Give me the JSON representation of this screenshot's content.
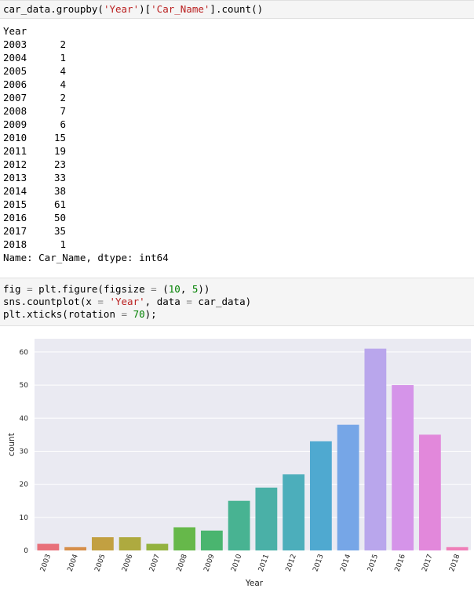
{
  "cell1": {
    "code": [
      [
        {
          "t": "car_data.groupby("
        },
        {
          "t": "'Year'",
          "c": "str"
        },
        {
          "t": ")["
        },
        {
          "t": "'Car_Name'",
          "c": "str"
        },
        {
          "t": "].count()"
        }
      ]
    ]
  },
  "output1": {
    "header": "Year",
    "rows": [
      {
        "year": "2003",
        "count": "2"
      },
      {
        "year": "2004",
        "count": "1"
      },
      {
        "year": "2005",
        "count": "4"
      },
      {
        "year": "2006",
        "count": "4"
      },
      {
        "year": "2007",
        "count": "2"
      },
      {
        "year": "2008",
        "count": "7"
      },
      {
        "year": "2009",
        "count": "6"
      },
      {
        "year": "2010",
        "count": "15"
      },
      {
        "year": "2011",
        "count": "19"
      },
      {
        "year": "2012",
        "count": "23"
      },
      {
        "year": "2013",
        "count": "33"
      },
      {
        "year": "2014",
        "count": "38"
      },
      {
        "year": "2015",
        "count": "61"
      },
      {
        "year": "2016",
        "count": "50"
      },
      {
        "year": "2017",
        "count": "35"
      },
      {
        "year": "2018",
        "count": "1"
      }
    ],
    "footer": "Name: Car_Name, dtype: int64"
  },
  "cell2": {
    "code": [
      [
        {
          "t": "fig "
        },
        {
          "t": "=",
          "c": "op"
        },
        {
          "t": " plt.figure(figsize "
        },
        {
          "t": "=",
          "c": "op"
        },
        {
          "t": " ("
        },
        {
          "t": "10",
          "c": "num"
        },
        {
          "t": ", "
        },
        {
          "t": "5",
          "c": "num"
        },
        {
          "t": "))"
        }
      ],
      [
        {
          "t": "sns.countplot(x "
        },
        {
          "t": "=",
          "c": "op"
        },
        {
          "t": " "
        },
        {
          "t": "'Year'",
          "c": "str"
        },
        {
          "t": ", data "
        },
        {
          "t": "=",
          "c": "op"
        },
        {
          "t": " car_data)"
        }
      ],
      [
        {
          "t": "plt.xticks(rotation "
        },
        {
          "t": "=",
          "c": "op"
        },
        {
          "t": " "
        },
        {
          "t": "70",
          "c": "num"
        },
        {
          "t": ");"
        }
      ]
    ]
  },
  "chart_data": {
    "type": "bar",
    "categories": [
      "2003",
      "2004",
      "2005",
      "2006",
      "2007",
      "2008",
      "2009",
      "2010",
      "2011",
      "2012",
      "2013",
      "2014",
      "2015",
      "2016",
      "2017",
      "2018"
    ],
    "values": [
      2,
      1,
      4,
      4,
      2,
      7,
      6,
      15,
      19,
      23,
      33,
      38,
      61,
      50,
      35,
      1
    ],
    "colors": [
      "#e8707a",
      "#d68e49",
      "#c2a041",
      "#aeaa3f",
      "#93b23f",
      "#66b84a",
      "#4ab56f",
      "#48b392",
      "#4ab0a7",
      "#4caebb",
      "#4fa9d0",
      "#76a6e7",
      "#b9a6ec",
      "#d594e9",
      "#e288db",
      "#ef7eb8"
    ],
    "xlabel": "Year",
    "ylabel": "count",
    "yticks": [
      0,
      10,
      20,
      30,
      40,
      50,
      60
    ],
    "ylim": [
      0,
      64
    ],
    "grid": true,
    "background": "#eaeaf2",
    "tick_rotation": 70
  }
}
